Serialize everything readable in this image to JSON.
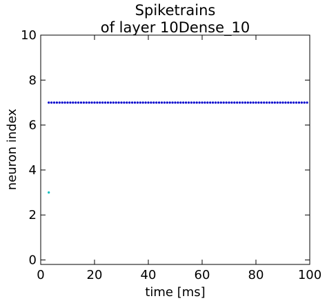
{
  "chart_data": {
    "type": "scatter",
    "title_line1": "Spiketrains",
    "title_line2": "of layer 10Dense_10",
    "xlabel": "time [ms]",
    "ylabel": "neuron index",
    "xlim": [
      0,
      100
    ],
    "ylim": [
      -0.2,
      10
    ],
    "xticks": [
      "0",
      "20",
      "40",
      "60",
      "80",
      "100"
    ],
    "yticks": [
      "0",
      "2",
      "4",
      "6",
      "8",
      "10"
    ],
    "grid": false,
    "series": [
      {
        "neuron": 7,
        "color": "#0000cc",
        "times": [
          3,
          4,
          5,
          6,
          7,
          8,
          9,
          10,
          11,
          12,
          13,
          14,
          15,
          16,
          17,
          18,
          19,
          20,
          21,
          22,
          23,
          24,
          25,
          26,
          27,
          28,
          29,
          30,
          31,
          32,
          33,
          34,
          35,
          36,
          37,
          38,
          39,
          40,
          41,
          42,
          43,
          44,
          45,
          46,
          47,
          48,
          49,
          50,
          51,
          52,
          53,
          54,
          55,
          56,
          57,
          58,
          59,
          60,
          61,
          62,
          63,
          64,
          65,
          66,
          67,
          68,
          69,
          70,
          71,
          72,
          73,
          74,
          75,
          76,
          77,
          78,
          79,
          80,
          81,
          82,
          83,
          84,
          85,
          86,
          87,
          88,
          89,
          90,
          91,
          92,
          93,
          94,
          95,
          96,
          97,
          98,
          99
        ]
      },
      {
        "neuron": 3,
        "color": "#00bfbf",
        "times": [
          3
        ]
      }
    ]
  }
}
